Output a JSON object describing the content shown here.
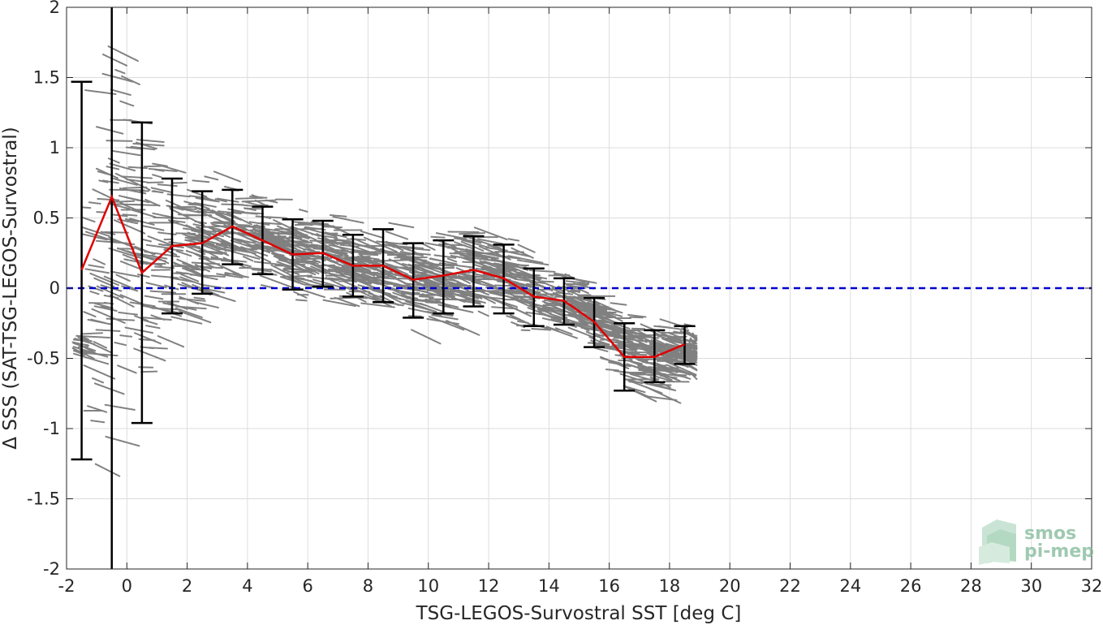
{
  "chart_data": {
    "type": "scatter",
    "xlabel": "TSG-LEGOS-Survostral SST [deg C]",
    "ylabel": "Δ SSS (SAT-TSG-LEGOS-Survostral)",
    "xlim": [
      -2,
      32
    ],
    "ylim": [
      -2,
      2
    ],
    "xticks": [
      -2,
      0,
      2,
      4,
      6,
      8,
      10,
      12,
      14,
      16,
      18,
      20,
      22,
      24,
      26,
      28,
      30,
      32
    ],
    "yticks": [
      -2,
      -1.5,
      -1,
      -0.5,
      0,
      0.5,
      1,
      1.5,
      2
    ],
    "xtick_labels": [
      "-2",
      "0",
      "2",
      "4",
      "6",
      "8",
      "10",
      "12",
      "14",
      "16",
      "18",
      "20",
      "22",
      "24",
      "26",
      "28",
      "30",
      "32"
    ],
    "ytick_labels": [
      "-2",
      "-1.5",
      "-1",
      "-0.5",
      "0",
      "0.5",
      "1",
      "1.5",
      "2"
    ],
    "grid": true,
    "colors": {
      "scatter": "#808080",
      "mean": "#e00000",
      "errorbar": "#000000",
      "zero_line": "#0000cc",
      "freezing_line": "#000000"
    },
    "zero_line": {
      "y": 0,
      "style": "dashed"
    },
    "freezing_line": {
      "x": -0.5
    },
    "series": [
      {
        "kind": "mean_with_std",
        "x": [
          -1.5,
          -0.5,
          0.5,
          1.5,
          2.5,
          3.5,
          4.5,
          5.5,
          6.5,
          7.5,
          8.5,
          9.5,
          10.5,
          11.5,
          12.5,
          13.5,
          14.5,
          15.5,
          16.5,
          17.5,
          18.5
        ],
        "y": [
          0.13,
          0.65,
          0.11,
          0.3,
          0.32,
          0.44,
          0.34,
          0.24,
          0.25,
          0.16,
          0.16,
          0.06,
          0.09,
          0.13,
          0.07,
          -0.06,
          -0.09,
          -0.24,
          -0.49,
          -0.49,
          -0.4
        ],
        "lower": [
          -1.22,
          null,
          -0.96,
          -0.18,
          -0.04,
          0.17,
          0.1,
          -0.01,
          0.01,
          -0.06,
          -0.1,
          -0.21,
          -0.18,
          -0.13,
          -0.18,
          -0.27,
          -0.26,
          -0.42,
          -0.73,
          -0.67,
          -0.54
        ],
        "upper": [
          1.47,
          null,
          1.18,
          0.78,
          0.69,
          0.7,
          0.58,
          0.49,
          0.48,
          0.38,
          0.42,
          0.32,
          0.34,
          0.37,
          0.31,
          0.14,
          0.07,
          -0.07,
          -0.25,
          -0.3,
          -0.27
        ]
      }
    ]
  },
  "watermark": {
    "line1": "smos",
    "line2": "pi-mep"
  }
}
